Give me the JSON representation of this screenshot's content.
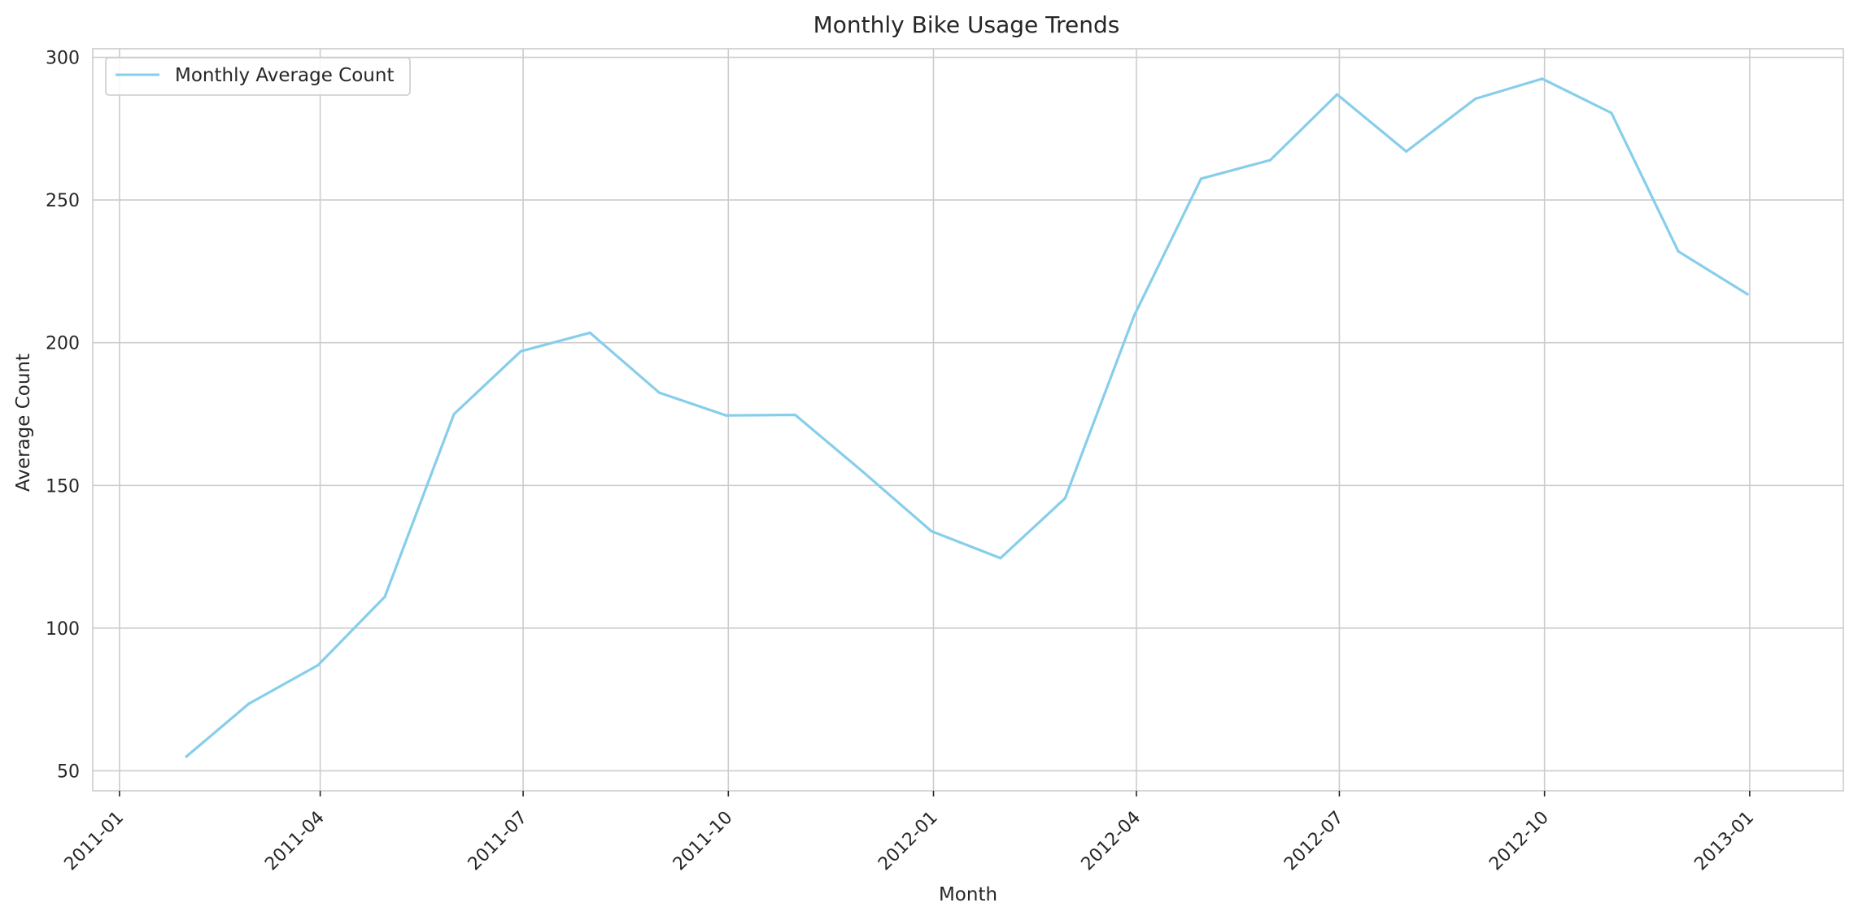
{
  "chart_data": {
    "type": "line",
    "title": "Monthly Bike Usage Trends",
    "xlabel": "Month",
    "ylabel": "Average Count",
    "x_tick_labels": [
      "2011-01",
      "2011-04",
      "2011-07",
      "2011-10",
      "2012-01",
      "2012-04",
      "2012-07",
      "2012-10",
      "2013-01"
    ],
    "y_ticks": [
      50,
      100,
      150,
      200,
      250,
      300
    ],
    "xlim": [
      "2010-12-20",
      "2013-02-12"
    ],
    "ylim": [
      43,
      303
    ],
    "grid": true,
    "legend_position": "top-left",
    "series": [
      {
        "name": "Monthly Average Count",
        "color": "#87ceeb",
        "x": [
          "2011-01-31",
          "2011-02-28",
          "2011-03-31",
          "2011-04-30",
          "2011-05-31",
          "2011-06-30",
          "2011-07-31",
          "2011-08-31",
          "2011-09-30",
          "2011-10-31",
          "2011-11-30",
          "2011-12-31",
          "2012-01-31",
          "2012-02-29",
          "2012-03-31",
          "2012-04-30",
          "2012-05-31",
          "2012-06-30",
          "2012-07-31",
          "2012-08-31",
          "2012-09-30",
          "2012-10-31",
          "2012-11-30",
          "2012-12-31"
        ],
        "values": [
          55,
          73.5,
          87,
          111,
          175,
          197,
          203.5,
          182.5,
          174.5,
          174.7,
          155,
          134,
          124.5,
          145.5,
          209.5,
          257.5,
          264,
          287,
          267,
          285.5,
          292.5,
          280.5,
          232,
          217
        ]
      }
    ]
  }
}
